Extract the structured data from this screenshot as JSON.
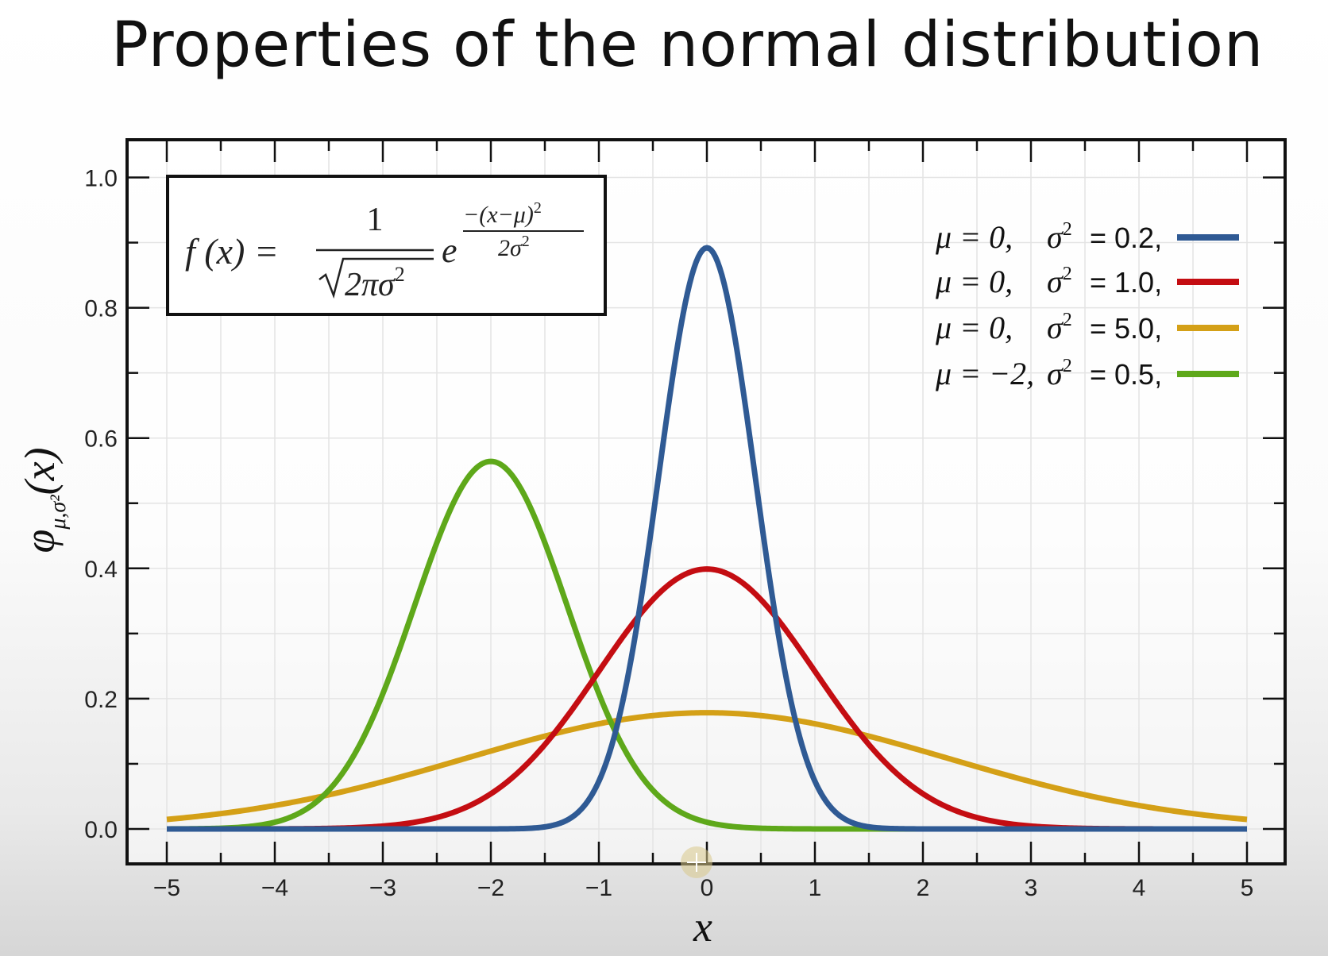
{
  "slide": {
    "title": "Properties of the normal distribution"
  },
  "formula": {
    "lhs": "f (x) =",
    "numerator": "1",
    "denominator": "2πσ",
    "denominator_exp": "2",
    "base": "e",
    "exp_numerator": "−(x−μ)",
    "exp_numerator_sup": "2",
    "exp_denominator": "2σ",
    "exp_denominator_sup": "2"
  },
  "chart_data": {
    "type": "line",
    "xlabel": "x",
    "ylabel_main": "φ",
    "ylabel_sub": "μ,σ²",
    "ylabel_arg": "(x)",
    "xlim": [
      -5,
      5
    ],
    "ylim": [
      -0.05,
      1.05
    ],
    "xticks": [
      -5,
      -4,
      -3,
      -2,
      -1,
      0,
      1,
      2,
      3,
      4,
      5
    ],
    "xtick_labels": [
      "−5",
      "−4",
      "−3",
      "−2",
      "−1",
      "0",
      "1",
      "2",
      "3",
      "4",
      "5"
    ],
    "yticks": [
      0.0,
      0.2,
      0.4,
      0.6,
      0.8,
      1.0
    ],
    "ytick_labels": [
      "0.0",
      "0.2",
      "0.4",
      "0.6",
      "0.8",
      "1.0"
    ],
    "grid": true,
    "legend_position": "top-right",
    "series": [
      {
        "mu": 0,
        "sigma2": 0.2,
        "color": "#2f5a94",
        "mu_text": "μ = 0,",
        "sigma_text": "σ",
        "sigma_sup": "2",
        "value_text": "= 0.2,"
      },
      {
        "mu": 0,
        "sigma2": 1.0,
        "color": "#c40d12",
        "mu_text": "μ = 0,",
        "sigma_text": "σ",
        "sigma_sup": "2",
        "value_text": "= 1.0,"
      },
      {
        "mu": 0,
        "sigma2": 5.0,
        "color": "#d4a017",
        "mu_text": "μ = 0,",
        "sigma_text": "σ",
        "sigma_sup": "2",
        "value_text": "= 5.0,"
      },
      {
        "mu": -2,
        "sigma2": 0.5,
        "color": "#5ea81a",
        "mu_text": "μ = −2,",
        "sigma_text": "σ",
        "sigma_sup": "2",
        "value_text": "= 0.5,"
      }
    ]
  }
}
